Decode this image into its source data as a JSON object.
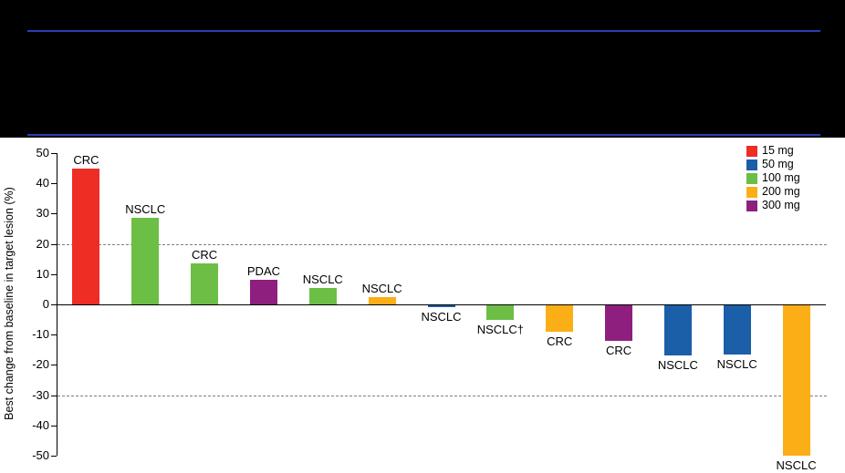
{
  "header": {
    "rule_color": "#2b3eb5"
  },
  "chart_data": {
    "type": "bar",
    "subtype": "waterfall",
    "title": "",
    "xlabel": "",
    "ylabel": "Best change from baseline in target lesion (%)",
    "ylim": [
      -50,
      50
    ],
    "yticks": [
      50,
      40,
      30,
      20,
      10,
      0,
      -10,
      -20,
      -30,
      -40,
      -50
    ],
    "reference_lines": [
      20,
      -30
    ],
    "grid": "dashed-horizontal-at-reference-lines",
    "legend_position": "top-right",
    "legend": [
      {
        "label": "15 mg",
        "color": "#ee2d24"
      },
      {
        "label": "50 mg",
        "color": "#1b5fa9"
      },
      {
        "label": "100 mg",
        "color": "#6cbe45"
      },
      {
        "label": "200 mg",
        "color": "#fcae17"
      },
      {
        "label": "300 mg",
        "color": "#8e1f7f"
      }
    ],
    "bars": [
      {
        "label": "CRC",
        "dose": "15 mg",
        "value": 45
      },
      {
        "label": "NSCLC",
        "dose": "100 mg",
        "value": 28.5
      },
      {
        "label": "CRC",
        "dose": "100 mg",
        "value": 13.5
      },
      {
        "label": "PDAC",
        "dose": "300 mg",
        "value": 8
      },
      {
        "label": "NSCLC",
        "dose": "100 mg",
        "value": 5.5
      },
      {
        "label": "NSCLC",
        "dose": "200 mg",
        "value": 2.5
      },
      {
        "label": "NSCLC",
        "dose": "50 mg",
        "value": -1
      },
      {
        "label": "NSCLC†",
        "dose": "100 mg",
        "value": -5
      },
      {
        "label": "CRC",
        "dose": "200 mg",
        "value": -9
      },
      {
        "label": "CRC",
        "dose": "300 mg",
        "value": -12
      },
      {
        "label": "NSCLC",
        "dose": "50 mg",
        "value": -17
      },
      {
        "label": "NSCLC",
        "dose": "50 mg",
        "value": -16.5
      },
      {
        "label": "NSCLC",
        "dose": "200 mg",
        "value": -50
      }
    ]
  }
}
